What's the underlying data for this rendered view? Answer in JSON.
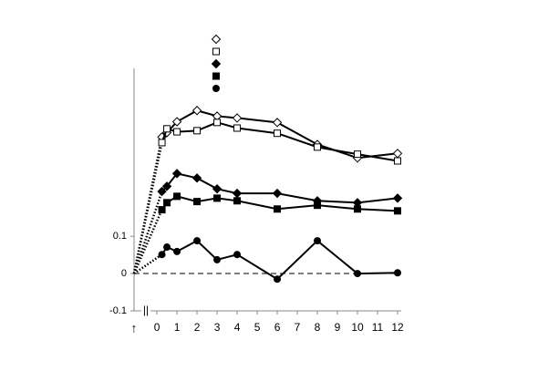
{
  "chart_data": {
    "type": "line",
    "start_label": "↑",
    "break_label": "||",
    "x": [
      0.25,
      0.5,
      1,
      2,
      3,
      4,
      6,
      8,
      10,
      12
    ],
    "series": [
      {
        "marker": "diamond",
        "filled": false,
        "color": "#000000",
        "values": [
          0.366,
          0.378,
          0.407,
          0.437,
          0.422,
          0.417,
          0.405,
          0.346,
          0.31,
          0.322
        ]
      },
      {
        "marker": "square",
        "filled": false,
        "color": "#000000",
        "values": [
          0.351,
          0.388,
          0.38,
          0.383,
          0.405,
          0.39,
          0.376,
          0.339,
          0.32,
          0.302
        ]
      },
      {
        "marker": "diamond",
        "filled": true,
        "color": "#000000",
        "values": [
          0.22,
          0.234,
          0.268,
          0.256,
          0.227,
          0.215,
          0.215,
          0.195,
          0.19,
          0.202
        ]
      },
      {
        "marker": "square",
        "filled": true,
        "color": "#000000",
        "values": [
          0.171,
          0.19,
          0.207,
          0.193,
          0.202,
          0.195,
          0.173,
          0.183,
          0.173,
          0.168
        ]
      },
      {
        "marker": "circle",
        "filled": true,
        "color": "#000000",
        "values": [
          0.051,
          0.071,
          0.059,
          0.088,
          0.037,
          0.051,
          -0.015,
          0.088,
          0,
          0.002
        ]
      }
    ],
    "xlim": [
      -1.14,
      12
    ],
    "xticks": [
      0,
      1,
      2,
      3,
      4,
      5,
      6,
      7,
      8,
      9,
      10,
      11,
      12
    ],
    "ylim": [
      -0.1,
      0.55
    ],
    "yticks": [
      -0.1,
      0,
      0.1
    ]
  }
}
